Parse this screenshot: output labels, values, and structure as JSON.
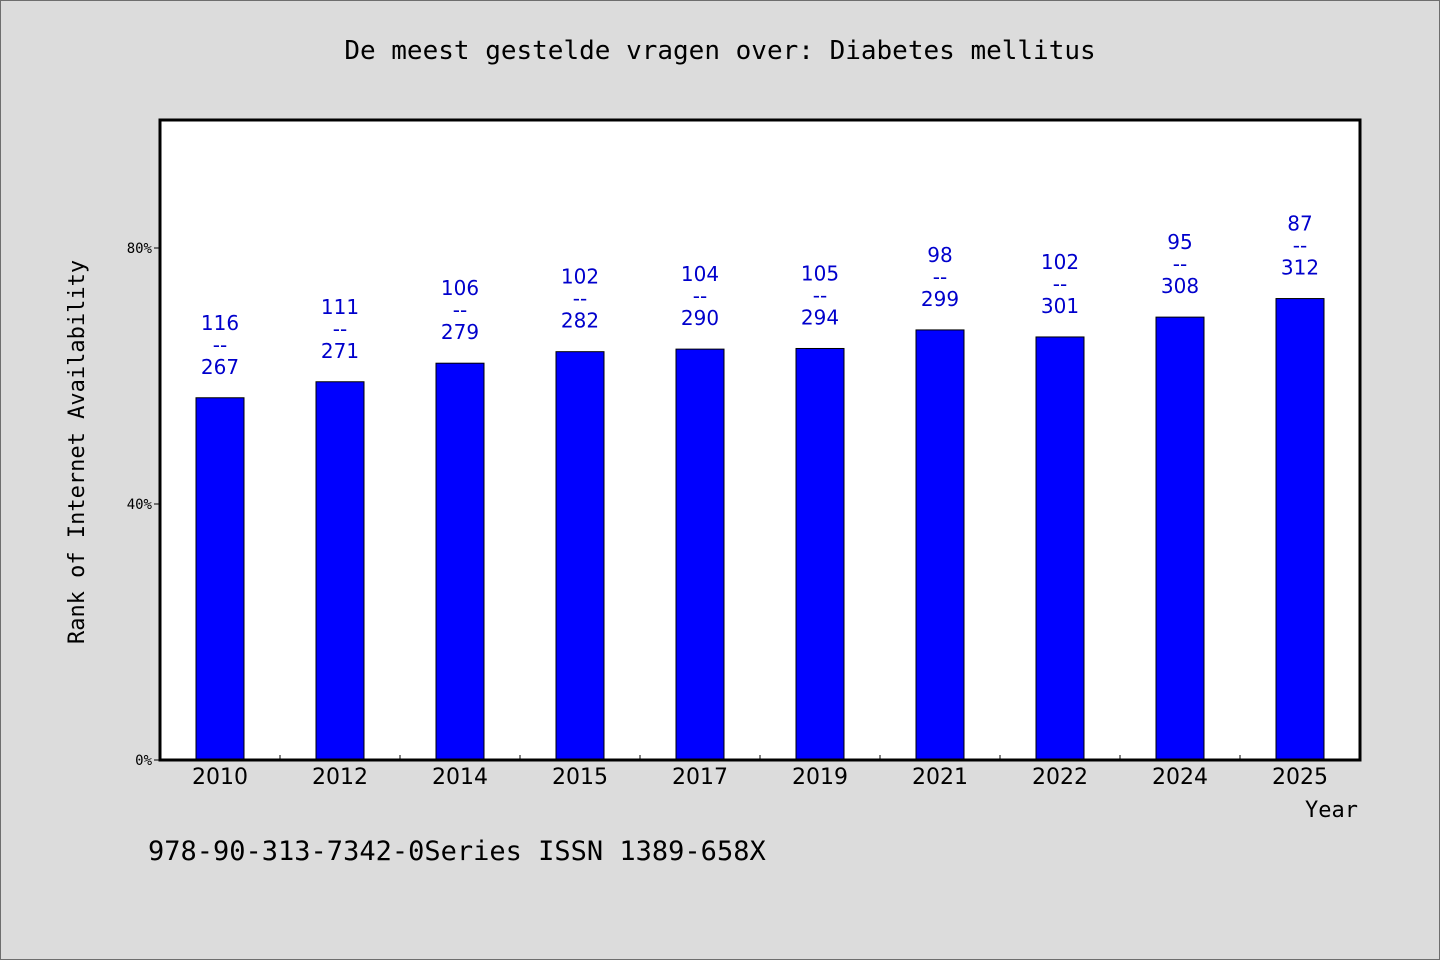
{
  "title": "De meest gestelde vragen over: Diabetes mellitus",
  "footer": "978-90-313-7342-0Series ISSN 1389-658X",
  "colors": {
    "bar": "#0000ff",
    "label": "#0000cc",
    "background": "#dcdcdc",
    "plot_background": "#ffffff"
  },
  "chart_data": {
    "type": "bar",
    "title": "De meest gestelde vragen over: Diabetes mellitus",
    "xlabel": "Year",
    "ylabel": "Rank of Internet Availability",
    "ylim": [
      0,
      100
    ],
    "yticks": [
      0,
      40,
      80
    ],
    "ytick_labels": [
      "0%",
      "40%",
      "80%"
    ],
    "categories": [
      "2010",
      "2012",
      "2014",
      "2015",
      "2017",
      "2019",
      "2021",
      "2022",
      "2024",
      "2025"
    ],
    "values": [
      56.6,
      59.1,
      62.0,
      63.8,
      64.2,
      64.3,
      67.2,
      66.1,
      69.2,
      72.1
    ],
    "data_labels": [
      [
        "116",
        "--",
        "267"
      ],
      [
        "111",
        "--",
        "271"
      ],
      [
        "106",
        "--",
        "279"
      ],
      [
        "102",
        "--",
        "282"
      ],
      [
        "104",
        "--",
        "290"
      ],
      [
        "105",
        "--",
        "294"
      ],
      [
        "98",
        "--",
        "299"
      ],
      [
        "102",
        "--",
        "301"
      ],
      [
        "95",
        "--",
        "308"
      ],
      [
        "87",
        "--",
        "312"
      ]
    ],
    "grid": false,
    "legend": "none"
  }
}
